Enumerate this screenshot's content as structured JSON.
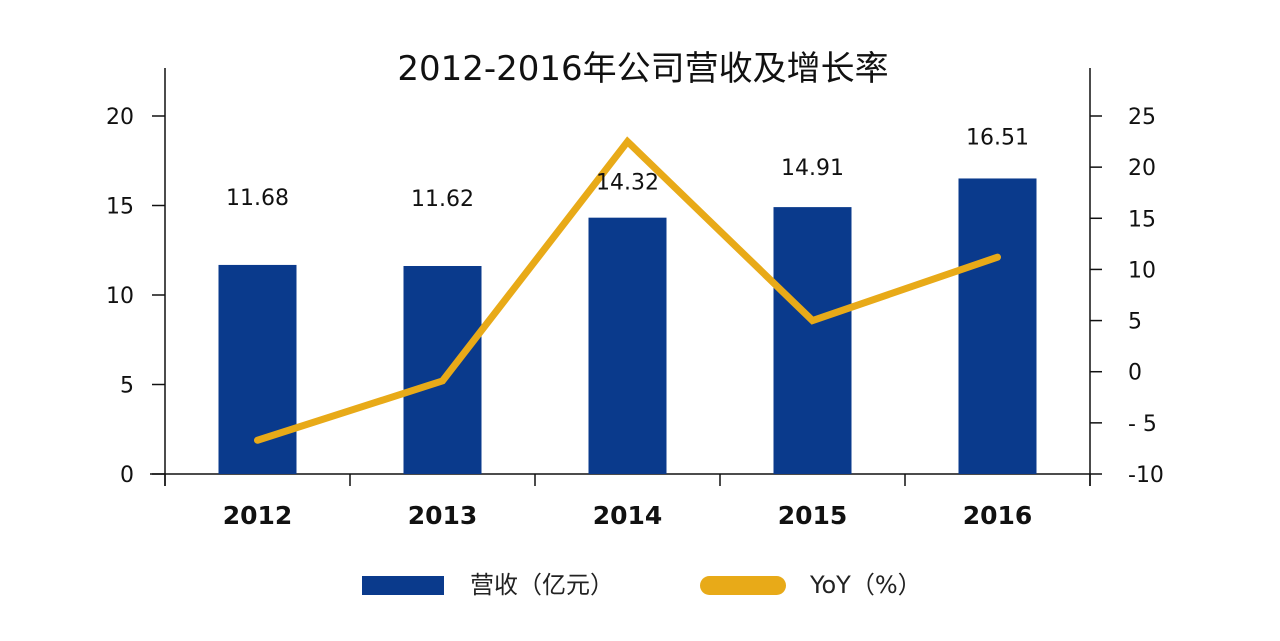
{
  "chart_data": {
    "type": "bar",
    "title": "2012-2016年公司营收及增长率",
    "categories": [
      "2012",
      "2013",
      "2014",
      "2015",
      "2016"
    ],
    "series": [
      {
        "name": "营收（亿元）",
        "type": "bar",
        "axis": "left",
        "values": [
          11.68,
          11.62,
          14.32,
          14.91,
          16.51
        ],
        "labels": [
          "11.68",
          "11.62",
          "14.32",
          "14.91",
          "16.51"
        ]
      },
      {
        "name": "YoY（%）",
        "type": "line",
        "axis": "right",
        "values": [
          -6.7,
          -0.9,
          22.5,
          5.0,
          11.2
        ]
      }
    ],
    "y_left": {
      "min": 0,
      "max": 20,
      "ticks": [
        "0",
        "5",
        "10",
        "15",
        "20"
      ]
    },
    "y_right": {
      "min": -10,
      "max": 25,
      "ticks": [
        "-10",
        "- 5",
        "0",
        "5",
        "10",
        "15",
        "20",
        "25"
      ]
    },
    "colors": {
      "bar": "#0a3a8c",
      "line": "#e8aa18",
      "axis": "#111111"
    },
    "legend": {
      "position": "bottom"
    },
    "grid": false
  }
}
